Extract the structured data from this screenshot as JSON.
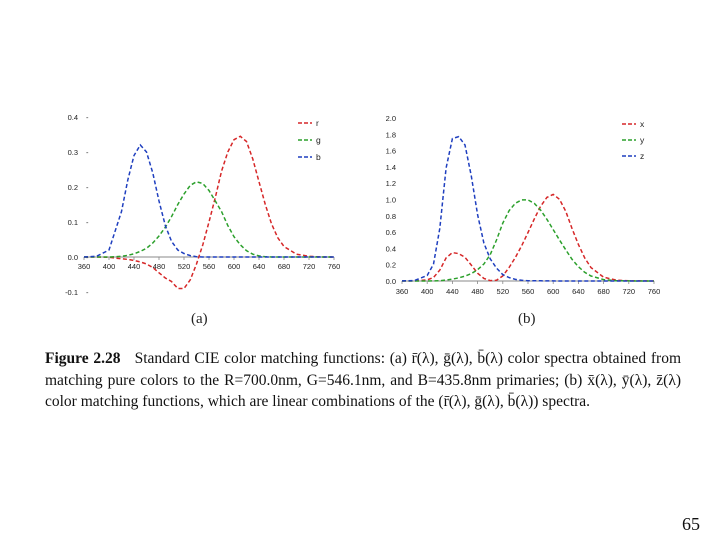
{
  "slide": {
    "page_number": "65",
    "sublabels": [
      "(a)",
      "(b)"
    ],
    "caption": {
      "figure_label": "Figure 2.28",
      "text": "Standard CIE color matching functions: (a) r̄(λ), ḡ(λ), b̄(λ) color spectra obtained from matching pure colors to the R=700.0nm, G=546.1nm, and B=435.8nm primaries; (b) x̄(λ), ȳ(λ), z̄(λ) color matching functions, which are linear combinations of the (r̄(λ), ḡ(λ), b̄(λ)) spectra."
    }
  },
  "chart_data": [
    {
      "type": "line",
      "title": "",
      "xlabel": "",
      "ylabel": "",
      "xlim": [
        360,
        760
      ],
      "ylim": [
        -0.1,
        0.4
      ],
      "xticks": [
        "360",
        "400",
        "440",
        "480",
        "520",
        "560",
        "600",
        "640",
        "680",
        "720",
        "760"
      ],
      "yticks": [
        "-0.1",
        "0.0",
        "0.1",
        "0.2",
        "0.3",
        "0.4"
      ],
      "legend_position": "top-right",
      "grid": false,
      "x": [
        360,
        380,
        400,
        420,
        430,
        440,
        450,
        460,
        470,
        480,
        490,
        500,
        510,
        520,
        530,
        540,
        550,
        560,
        570,
        580,
        590,
        600,
        610,
        620,
        630,
        640,
        650,
        660,
        670,
        680,
        700,
        720,
        740,
        760
      ],
      "series": [
        {
          "name": "r",
          "color": "#d62728",
          "values": [
            0.0,
            0.0,
            -0.001,
            -0.005,
            -0.007,
            -0.01,
            -0.014,
            -0.02,
            -0.03,
            -0.045,
            -0.06,
            -0.07,
            -0.09,
            -0.09,
            -0.065,
            -0.02,
            0.035,
            0.1,
            0.17,
            0.245,
            0.3,
            0.335,
            0.345,
            0.33,
            0.28,
            0.215,
            0.15,
            0.095,
            0.055,
            0.03,
            0.008,
            0.002,
            0.0,
            0.0
          ]
        },
        {
          "name": "g",
          "color": "#2ca02c",
          "values": [
            0.0,
            0.0,
            0.0,
            0.002,
            0.005,
            0.009,
            0.016,
            0.025,
            0.04,
            0.06,
            0.085,
            0.115,
            0.15,
            0.18,
            0.205,
            0.215,
            0.21,
            0.19,
            0.16,
            0.13,
            0.09,
            0.058,
            0.035,
            0.018,
            0.008,
            0.003,
            0.001,
            0.0,
            0.0,
            0.0,
            0.0,
            0.0,
            0.0,
            0.0
          ]
        },
        {
          "name": "b",
          "color": "#1f3fbf",
          "values": [
            0.0,
            0.002,
            0.02,
            0.13,
            0.22,
            0.29,
            0.32,
            0.3,
            0.24,
            0.16,
            0.09,
            0.045,
            0.02,
            0.01,
            0.004,
            0.001,
            0.0,
            0.0,
            0.0,
            0.0,
            0.0,
            0.0,
            0.0,
            0.0,
            0.0,
            0.0,
            0.0,
            0.0,
            0.0,
            0.0,
            0.0,
            0.0,
            0.0,
            0.0
          ]
        }
      ]
    },
    {
      "type": "line",
      "title": "",
      "xlabel": "",
      "ylabel": "",
      "xlim": [
        360,
        760
      ],
      "ylim": [
        0.0,
        2.0
      ],
      "xticks": [
        "360",
        "400",
        "440",
        "480",
        "520",
        "560",
        "600",
        "640",
        "680",
        "720",
        "760"
      ],
      "yticks": [
        "0.0",
        "0.2",
        "0.4",
        "0.6",
        "0.8",
        "1.0",
        "1.2",
        "1.4",
        "1.6",
        "1.8",
        "2.0"
      ],
      "legend_position": "top-right",
      "grid": false,
      "x": [
        360,
        380,
        400,
        410,
        420,
        430,
        440,
        450,
        460,
        470,
        480,
        490,
        500,
        510,
        520,
        530,
        540,
        550,
        560,
        570,
        580,
        590,
        600,
        610,
        620,
        630,
        640,
        650,
        660,
        680,
        700,
        720,
        740,
        760
      ],
      "series": [
        {
          "name": "x",
          "color": "#d62728",
          "values": [
            0.0,
            0.001,
            0.014,
            0.043,
            0.134,
            0.284,
            0.348,
            0.336,
            0.291,
            0.195,
            0.096,
            0.032,
            0.005,
            0.009,
            0.063,
            0.166,
            0.29,
            0.433,
            0.595,
            0.762,
            0.916,
            1.026,
            1.062,
            1.003,
            0.854,
            0.642,
            0.448,
            0.284,
            0.165,
            0.047,
            0.011,
            0.003,
            0.001,
            0.0
          ]
        },
        {
          "name": "y",
          "color": "#2ca02c",
          "values": [
            0.0,
            0.0,
            0.0,
            0.001,
            0.004,
            0.012,
            0.023,
            0.038,
            0.06,
            0.091,
            0.139,
            0.208,
            0.323,
            0.503,
            0.71,
            0.862,
            0.954,
            0.995,
            0.995,
            0.952,
            0.87,
            0.757,
            0.631,
            0.503,
            0.381,
            0.265,
            0.175,
            0.107,
            0.061,
            0.017,
            0.004,
            0.001,
            0.0,
            0.0
          ]
        },
        {
          "name": "z",
          "color": "#1f3fbf",
          "values": [
            0.001,
            0.006,
            0.068,
            0.207,
            0.646,
            1.386,
            1.747,
            1.772,
            1.669,
            1.288,
            0.813,
            0.465,
            0.272,
            0.158,
            0.078,
            0.042,
            0.02,
            0.009,
            0.004,
            0.002,
            0.002,
            0.001,
            0.001,
            0.0,
            0.0,
            0.0,
            0.0,
            0.0,
            0.0,
            0.0,
            0.0,
            0.0,
            0.0,
            0.0
          ]
        }
      ]
    }
  ]
}
